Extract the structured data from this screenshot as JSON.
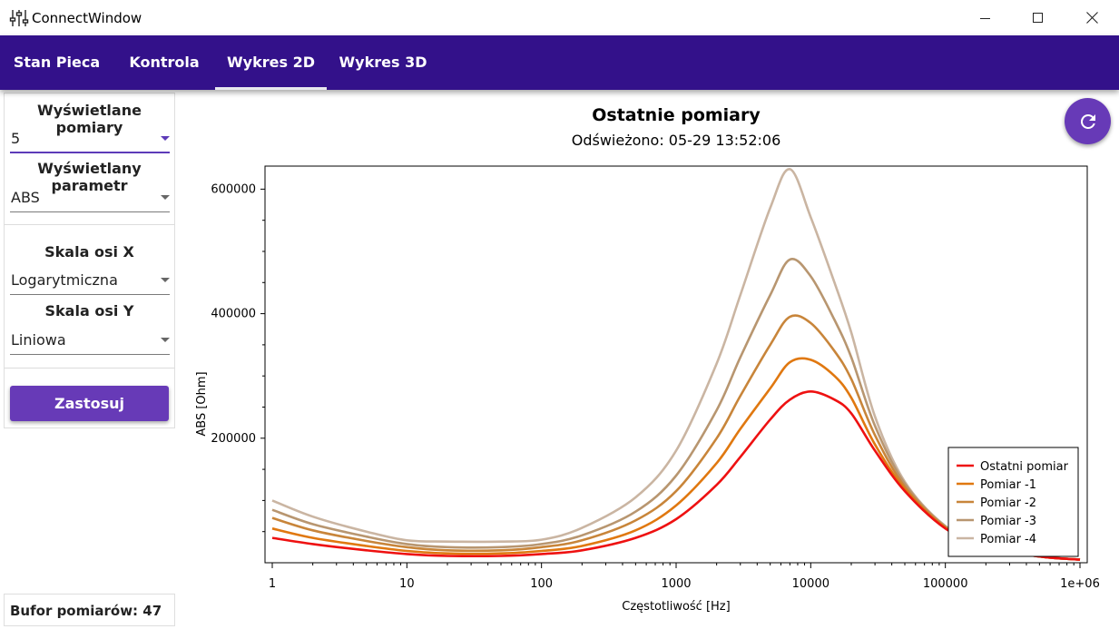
{
  "window": {
    "title": "ConnectWindow"
  },
  "tabs": [
    {
      "label": "Stan Pieca",
      "active": false
    },
    {
      "label": "Kontrola",
      "active": false
    },
    {
      "label": "Wykres 2D",
      "active": true
    },
    {
      "label": "Wykres 3D",
      "active": false
    }
  ],
  "panel": {
    "measurements_title": "Wyświetlane pomiary",
    "measurements_value": "5",
    "parameter_title": "Wyświetlany parametr",
    "parameter_value": "ABS",
    "x_scale_title": "Skala osi X",
    "x_scale_value": "Logarytmiczna",
    "y_scale_title": "Skala osi Y",
    "y_scale_value": "Liniowa",
    "apply_label": "Zastosuj"
  },
  "buffer": {
    "label": "Bufor pomiarów: 47"
  },
  "colors": {
    "navbar": "#33118a",
    "accent": "#673ab7"
  },
  "icons": {
    "app": "sliders-icon",
    "refresh": "refresh-icon"
  },
  "chart_data": {
    "type": "line",
    "title": "Ostatnie pomiary",
    "subtitle": "Odświeżono: 05-29 13:52:06",
    "xlabel": "Częstotliwość [Hz]",
    "ylabel": "ABS [Ohm]",
    "xscale": "log",
    "xlim": [
      1,
      1000000
    ],
    "ylim": [
      0,
      637000
    ],
    "x_ticks": [
      1,
      10,
      100,
      1000,
      10000,
      100000,
      1000000
    ],
    "x_tick_labels": [
      "1",
      "10",
      "100",
      "1000",
      "10000",
      "100000",
      "1e+06"
    ],
    "y_ticks": [
      200000,
      400000,
      600000
    ],
    "y_tick_labels": [
      "200000",
      "400000",
      "600000"
    ],
    "legend_position": "bottom-right",
    "grid": false,
    "x": [
      1,
      2,
      5,
      10,
      20,
      50,
      100,
      200,
      500,
      1000,
      2000,
      3000,
      5000,
      7000,
      10000,
      15000,
      20000,
      30000,
      50000,
      100000,
      200000,
      500000,
      1000000
    ],
    "series": [
      {
        "name": "Ostatni pomiar",
        "color": "#ee1111",
        "values": [
          40000,
          30000,
          20000,
          14000,
          11000,
          11000,
          14000,
          20000,
          40000,
          70000,
          125000,
          170000,
          230000,
          262000,
          275000,
          262000,
          240000,
          180000,
          115000,
          55000,
          25000,
          10000,
          5000
        ]
      },
      {
        "name": "Pomiar -1",
        "color": "#e07810",
        "values": [
          55000,
          40000,
          27000,
          19000,
          15000,
          15000,
          19000,
          27000,
          52000,
          92000,
          160000,
          215000,
          280000,
          322000,
          326000,
          300000,
          265000,
          190000,
          118000,
          56000,
          26000,
          10000,
          5000
        ]
      },
      {
        "name": "Pomiar -2",
        "color": "#c8853a",
        "values": [
          72000,
          52000,
          35000,
          25000,
          20000,
          20000,
          25000,
          36000,
          68000,
          115000,
          200000,
          268000,
          350000,
          395000,
          385000,
          340000,
          295000,
          205000,
          122000,
          57000,
          26000,
          10000,
          5000
        ]
      },
      {
        "name": "Pomiar -3",
        "color": "#b89670",
        "values": [
          85000,
          62000,
          42000,
          30000,
          25000,
          25000,
          30000,
          44000,
          82000,
          140000,
          245000,
          330000,
          430000,
          487000,
          460000,
          390000,
          330000,
          220000,
          127000,
          58000,
          26000,
          10000,
          5000
        ]
      },
      {
        "name": "Pomiar -4",
        "color": "#cab5a2",
        "values": [
          100000,
          74000,
          50000,
          36000,
          34000,
          34000,
          37000,
          56000,
          105000,
          180000,
          320000,
          430000,
          570000,
          632000,
          555000,
          450000,
          370000,
          235000,
          130000,
          59000,
          26000,
          10000,
          5000
        ]
      }
    ]
  }
}
